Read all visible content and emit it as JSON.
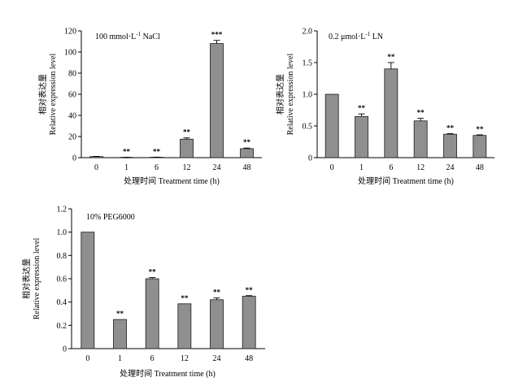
{
  "chart_data": [
    {
      "type": "bar",
      "annotation": "100 mmol·L-1 NaCl",
      "annotation_parts": [
        "100 mmol·L",
        "-1",
        " NaCl"
      ],
      "categories": [
        "0",
        "1",
        "6",
        "12",
        "24",
        "48"
      ],
      "values": [
        1.0,
        0.3,
        0.4,
        17.5,
        108.0,
        8.5
      ],
      "errors": [
        0.2,
        0.1,
        0.1,
        1.2,
        3.0,
        0.6
      ],
      "significance": [
        "",
        "**",
        "**",
        "**",
        "***",
        "**"
      ],
      "xlabel": "处理时间 Treatment time (h)",
      "ylabel_cn": "相对表达量",
      "ylabel_en": "Relative expression level",
      "ylim": [
        0,
        120
      ],
      "yticks": [
        "0",
        "20",
        "40",
        "60",
        "80",
        "100",
        "120"
      ]
    },
    {
      "type": "bar",
      "annotation": "0.2 μmol·L-1 LN",
      "annotation_parts": [
        "0.2 μmol·L",
        "-1",
        " LN"
      ],
      "categories": [
        "0",
        "1",
        "6",
        "12",
        "24",
        "48"
      ],
      "values": [
        1.0,
        0.65,
        1.4,
        0.58,
        0.37,
        0.35
      ],
      "errors": [
        0.0,
        0.04,
        0.1,
        0.04,
        0.01,
        0.01
      ],
      "significance": [
        "",
        "**",
        "**",
        "**",
        "**",
        "**"
      ],
      "xlabel": "处理时间 Treatment time (h)",
      "ylabel_cn": "相对表达量",
      "ylabel_en": "Relative expression level",
      "ylim": [
        0,
        2.0
      ],
      "yticks": [
        "0",
        "0.5",
        "1.0",
        "1.5",
        "2.0"
      ]
    },
    {
      "type": "bar",
      "annotation": "10% PEG6000",
      "annotation_parts": [
        "10% PEG6000",
        "",
        ""
      ],
      "categories": [
        "0",
        "1",
        "6",
        "12",
        "24",
        "48"
      ],
      "values": [
        1.0,
        0.25,
        0.6,
        0.385,
        0.42,
        0.45
      ],
      "errors": [
        0.0,
        0.0,
        0.01,
        0.0,
        0.015,
        0.005
      ],
      "significance": [
        "",
        "**",
        "**",
        "**",
        "**",
        "**"
      ],
      "xlabel": "处理时间 Treatment time (h)",
      "ylabel_cn": "相对表达量",
      "ylabel_en": "Relative expression level",
      "ylim": [
        0,
        1.2
      ],
      "yticks": [
        "0",
        "0.2",
        "0.4",
        "0.6",
        "0.8",
        "1.0",
        "1.2"
      ]
    }
  ]
}
